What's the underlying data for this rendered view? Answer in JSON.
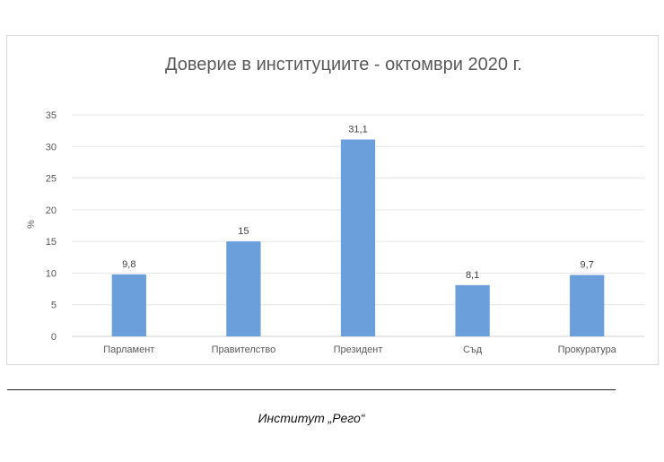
{
  "chart_data": {
    "type": "bar",
    "title": "Доверие в институциите - октомври 2020 г.",
    "ylabel": "%",
    "xlabel": "",
    "categories": [
      "Парламент",
      "Правителство",
      "Президент",
      "Съд",
      "Прокуратура"
    ],
    "values": [
      9.8,
      15,
      31.1,
      8.1,
      9.7
    ],
    "value_labels": [
      "9,8",
      "15",
      "31,1",
      "8,1",
      "9,7"
    ],
    "ylim": [
      0,
      35
    ],
    "yticks": [
      0,
      5,
      10,
      15,
      20,
      25,
      30,
      35
    ],
    "grid": true,
    "legend": "none",
    "bar_color": "#6a9fdb"
  },
  "source": "Институт „Рего“"
}
